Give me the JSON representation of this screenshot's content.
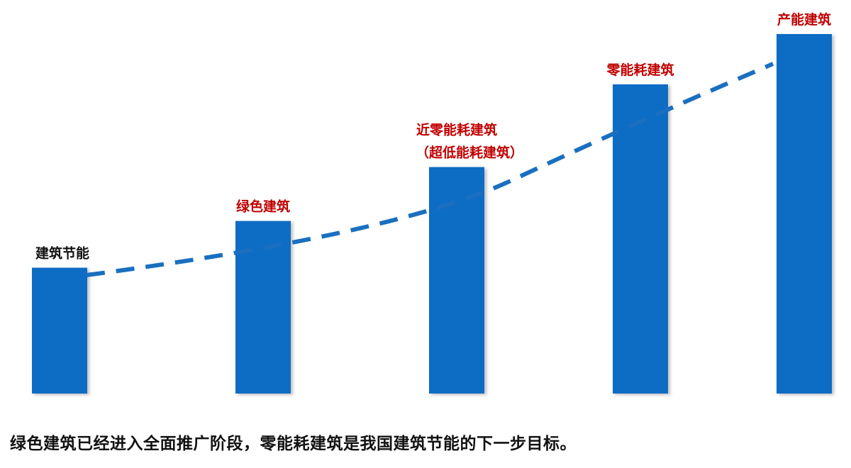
{
  "chart_data": {
    "type": "bar",
    "categories": [
      "建筑节能",
      "绿色建筑",
      "近零能耗建筑\n（超低能耗建筑）",
      "零能耗建筑",
      "产能建筑"
    ],
    "category_label_colors": [
      "#111111",
      "#c00000",
      "#c00000",
      "#c00000",
      "#c00000"
    ],
    "values": [
      35,
      48,
      63,
      86,
      100
    ],
    "trend_line": {
      "style": "dashed",
      "color": "#1a6fc0"
    },
    "bar_color": "#0a6cc4",
    "title": "",
    "xlabel": "",
    "ylabel": "",
    "ylim": [
      0,
      100
    ],
    "grid": false,
    "axes_visible": false
  },
  "caption": "绿色建筑已经进入全面推广阶段，零能耗建筑是我国建筑节能的下一步目标。"
}
